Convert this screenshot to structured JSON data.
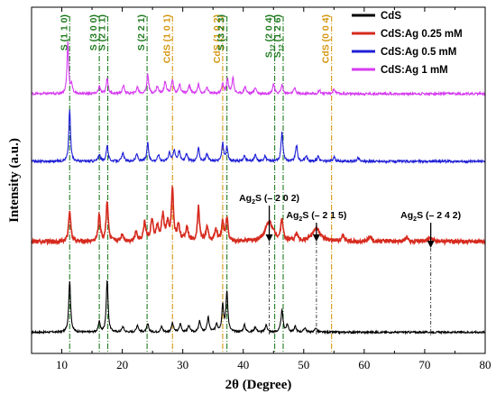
{
  "chart_data": {
    "type": "line",
    "xlabel": "2θ (Degree)",
    "ylabel": "Intensity (a.u.)",
    "xlim": [
      5,
      80
    ],
    "xticks": [
      10,
      20,
      30,
      40,
      50,
      60,
      70,
      80
    ],
    "yticks": "none",
    "grid": false,
    "legend_position": "top-right",
    "series": [
      {
        "name": "CdS",
        "color": "#000000",
        "offset": 0,
        "base": 3.5,
        "noise": 1.0,
        "peaks": [
          {
            "x": 11.3,
            "h": 57,
            "w": 0.18
          },
          {
            "x": 16.2,
            "h": 12,
            "w": 0.16
          },
          {
            "x": 17.5,
            "h": 58,
            "w": 0.18
          },
          {
            "x": 20.1,
            "h": 6,
            "w": 0.2
          },
          {
            "x": 22.5,
            "h": 8,
            "w": 0.2
          },
          {
            "x": 24.2,
            "h": 9,
            "w": 0.2
          },
          {
            "x": 26.5,
            "h": 6,
            "w": 0.2
          },
          {
            "x": 28.3,
            "h": 10,
            "w": 0.2
          },
          {
            "x": 29.6,
            "h": 9,
            "w": 0.2
          },
          {
            "x": 31.0,
            "h": 7,
            "w": 0.2
          },
          {
            "x": 32.8,
            "h": 12,
            "w": 0.2
          },
          {
            "x": 34.2,
            "h": 16,
            "w": 0.2
          },
          {
            "x": 35.6,
            "h": 9,
            "w": 0.2
          },
          {
            "x": 36.6,
            "h": 30,
            "w": 0.18
          },
          {
            "x": 37.3,
            "h": 45,
            "w": 0.18
          },
          {
            "x": 40.2,
            "h": 8,
            "w": 0.2
          },
          {
            "x": 42.0,
            "h": 6,
            "w": 0.2
          },
          {
            "x": 43.8,
            "h": 8,
            "w": 0.2
          },
          {
            "x": 46.4,
            "h": 24,
            "w": 0.2
          },
          {
            "x": 47.3,
            "h": 8,
            "w": 0.2
          },
          {
            "x": 48.6,
            "h": 6,
            "w": 0.2
          },
          {
            "x": 50.2,
            "h": 5,
            "w": 0.2
          },
          {
            "x": 52.0,
            "h": 5,
            "w": 0.2
          }
        ]
      },
      {
        "name": "CdS:Ag 0.25 mM",
        "color": "#d62a1e",
        "offset": 100,
        "base": 4,
        "noise": 2.2,
        "peaks": [
          {
            "x": 11.3,
            "h": 35,
            "w": 0.2
          },
          {
            "x": 16.2,
            "h": 30,
            "w": 0.2
          },
          {
            "x": 17.5,
            "h": 45,
            "w": 0.2
          },
          {
            "x": 20.0,
            "h": 8,
            "w": 0.25
          },
          {
            "x": 22.3,
            "h": 10,
            "w": 0.25
          },
          {
            "x": 23.7,
            "h": 20,
            "w": 0.25
          },
          {
            "x": 24.9,
            "h": 22,
            "w": 0.25
          },
          {
            "x": 25.8,
            "h": 15,
            "w": 0.25
          },
          {
            "x": 26.7,
            "h": 28,
            "w": 0.25
          },
          {
            "x": 27.5,
            "h": 18,
            "w": 0.25
          },
          {
            "x": 28.3,
            "h": 57,
            "w": 0.2
          },
          {
            "x": 29.3,
            "h": 18,
            "w": 0.25
          },
          {
            "x": 30.7,
            "h": 16,
            "w": 0.25
          },
          {
            "x": 32.6,
            "h": 38,
            "w": 0.2
          },
          {
            "x": 34.0,
            "h": 15,
            "w": 0.25
          },
          {
            "x": 35.5,
            "h": 12,
            "w": 0.25
          },
          {
            "x": 36.6,
            "h": 22,
            "w": 0.2
          },
          {
            "x": 37.3,
            "h": 26,
            "w": 0.2
          },
          {
            "x": 44.3,
            "h": 22,
            "w": 0.8
          },
          {
            "x": 46.4,
            "h": 24,
            "w": 0.2
          },
          {
            "x": 48.8,
            "h": 8,
            "w": 0.25
          },
          {
            "x": 52.1,
            "h": 14,
            "w": 0.8
          },
          {
            "x": 56.5,
            "h": 6,
            "w": 0.3
          },
          {
            "x": 61.0,
            "h": 5,
            "w": 0.3
          },
          {
            "x": 67.0,
            "h": 5,
            "w": 0.3
          },
          {
            "x": 71.0,
            "h": 4,
            "w": 0.4
          }
        ]
      },
      {
        "name": "CdS:Ag 0.5 mM",
        "color": "#1f1fd6",
        "offset": 190,
        "base": 3,
        "noise": 1.3,
        "peaks": [
          {
            "x": 11.3,
            "h": 58,
            "w": 0.16
          },
          {
            "x": 16.2,
            "h": 8,
            "w": 0.18
          },
          {
            "x": 17.5,
            "h": 18,
            "w": 0.18
          },
          {
            "x": 20.1,
            "h": 9,
            "w": 0.2
          },
          {
            "x": 22.4,
            "h": 8,
            "w": 0.2
          },
          {
            "x": 24.2,
            "h": 20,
            "w": 0.18
          },
          {
            "x": 26.0,
            "h": 7,
            "w": 0.2
          },
          {
            "x": 27.8,
            "h": 10,
            "w": 0.2
          },
          {
            "x": 28.6,
            "h": 12,
            "w": 0.2
          },
          {
            "x": 29.4,
            "h": 11,
            "w": 0.2
          },
          {
            "x": 30.6,
            "h": 9,
            "w": 0.2
          },
          {
            "x": 32.6,
            "h": 14,
            "w": 0.2
          },
          {
            "x": 34.0,
            "h": 8,
            "w": 0.2
          },
          {
            "x": 36.6,
            "h": 20,
            "w": 0.18
          },
          {
            "x": 37.3,
            "h": 15,
            "w": 0.18
          },
          {
            "x": 40.2,
            "h": 6,
            "w": 0.2
          },
          {
            "x": 42.0,
            "h": 7,
            "w": 0.2
          },
          {
            "x": 43.6,
            "h": 6,
            "w": 0.2
          },
          {
            "x": 46.4,
            "h": 33,
            "w": 0.18
          },
          {
            "x": 48.8,
            "h": 18,
            "w": 0.18
          },
          {
            "x": 50.4,
            "h": 6,
            "w": 0.2
          },
          {
            "x": 52.4,
            "h": 6,
            "w": 0.2
          },
          {
            "x": 55.0,
            "h": 5,
            "w": 0.2
          },
          {
            "x": 59.0,
            "h": 4,
            "w": 0.2
          }
        ]
      },
      {
        "name": "CdS:Ag 1 mM",
        "color": "#d63bf0",
        "offset": 265,
        "base": 3,
        "noise": 1.3,
        "peaks": [
          {
            "x": 11.0,
            "h": 57,
            "w": 0.16
          },
          {
            "x": 11.6,
            "h": 10,
            "w": 0.16
          },
          {
            "x": 16.2,
            "h": 8,
            "w": 0.18
          },
          {
            "x": 17.5,
            "h": 18,
            "w": 0.18
          },
          {
            "x": 20.2,
            "h": 9,
            "w": 0.2
          },
          {
            "x": 22.5,
            "h": 7,
            "w": 0.2
          },
          {
            "x": 24.2,
            "h": 22,
            "w": 0.18
          },
          {
            "x": 25.8,
            "h": 8,
            "w": 0.2
          },
          {
            "x": 27.1,
            "h": 14,
            "w": 0.2
          },
          {
            "x": 28.3,
            "h": 15,
            "w": 0.2
          },
          {
            "x": 29.5,
            "h": 10,
            "w": 0.2
          },
          {
            "x": 31.1,
            "h": 9,
            "w": 0.2
          },
          {
            "x": 32.6,
            "h": 10,
            "w": 0.2
          },
          {
            "x": 34.0,
            "h": 7,
            "w": 0.2
          },
          {
            "x": 36.6,
            "h": 11,
            "w": 0.2
          },
          {
            "x": 37.4,
            "h": 16,
            "w": 0.18
          },
          {
            "x": 38.3,
            "h": 18,
            "w": 0.18
          },
          {
            "x": 40.3,
            "h": 8,
            "w": 0.2
          },
          {
            "x": 42.0,
            "h": 7,
            "w": 0.2
          },
          {
            "x": 45.0,
            "h": 11,
            "w": 0.18
          },
          {
            "x": 46.4,
            "h": 10,
            "w": 0.18
          },
          {
            "x": 48.5,
            "h": 6,
            "w": 0.2
          },
          {
            "x": 52.6,
            "h": 4,
            "w": 0.2
          },
          {
            "x": 55.0,
            "h": 5,
            "w": 0.2
          }
        ]
      }
    ],
    "reference_lines": [
      {
        "x": 11.3,
        "label": "S (1 1 0)",
        "color": "#1f7a1f"
      },
      {
        "x": 16.2,
        "label": "S (3 0 0)",
        "color": "#1f7a1f"
      },
      {
        "x": 17.6,
        "label": "S (2 1 1)",
        "color": "#1f7a1f"
      },
      {
        "x": 24.1,
        "label": "S (2 2 1)",
        "color": "#1f7a1f"
      },
      {
        "x": 28.3,
        "label": "CdS (1 0 1)",
        "color": "#d4960f"
      },
      {
        "x": 36.6,
        "label": "CdS (1 0 2)",
        "color": "#d4960f"
      },
      {
        "x": 37.3,
        "label": "S (3 2 3)",
        "color": "#1f7a1f"
      },
      {
        "x": 45.2,
        "label": "S12 (2 0 4)",
        "color": "#1f7a1f"
      },
      {
        "x": 46.6,
        "label": "S12 (1 2 6)",
        "color": "#1f7a1f"
      },
      {
        "x": 54.6,
        "label": "CdS (0 0 4)",
        "color": "#d4960f"
      }
    ],
    "annotations": [
      {
        "x": 44.3,
        "label": "Ag2S (– 2 0 2)"
      },
      {
        "x": 52.1,
        "label": "Ag2S (– 2 1 5)"
      },
      {
        "x": 71.0,
        "label": "Ag2S (– 2 4 2)"
      }
    ]
  }
}
